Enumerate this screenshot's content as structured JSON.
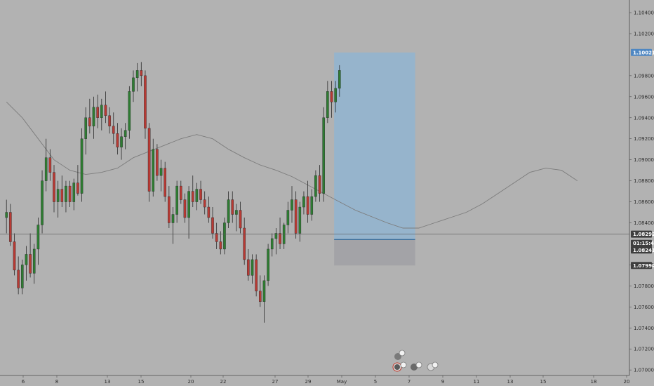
{
  "chart_data": {
    "type": "candlestick",
    "title": "",
    "ylim": [
      1.06983,
      1.10513
    ],
    "y_ticks": [
      "1.10400",
      "1.10200",
      "1.09800",
      "1.09600",
      "1.09400",
      "1.09200",
      "1.09000",
      "1.08800",
      "1.08600",
      "1.08400",
      "1.08000",
      "1.07800",
      "1.07600",
      "1.07400",
      "1.07200",
      "1.07000"
    ],
    "x_ticks": [
      "6",
      "8",
      "13",
      "15",
      "20",
      "22",
      "27",
      "29",
      "May",
      "5",
      "7",
      "9",
      "11",
      "13",
      "15",
      "18",
      "20"
    ],
    "price_tags": [
      {
        "label": "1.10021",
        "value": 1.10021,
        "role": "target"
      },
      {
        "label": "1.08292",
        "value": 1.08292,
        "role": "current"
      },
      {
        "label": "01:15:47",
        "value": 1.08205,
        "role": "countdown"
      },
      {
        "label": "1.08241",
        "value": 1.08141,
        "role": "entry"
      },
      {
        "label": "1.07994",
        "value": 1.07994,
        "role": "stop"
      }
    ],
    "position_tool": {
      "entry": 1.08241,
      "target": 1.10021,
      "stop": 1.07994,
      "span_bars": [
        83,
        103
      ]
    },
    "moving_average": [
      [
        0,
        1.0955
      ],
      [
        4,
        1.094
      ],
      [
        8,
        1.092
      ],
      [
        12,
        1.09
      ],
      [
        16,
        1.089
      ],
      [
        20,
        1.0886
      ],
      [
        24,
        1.0888
      ],
      [
        28,
        1.0892
      ],
      [
        32,
        1.0902
      ],
      [
        36,
        1.0908
      ],
      [
        40,
        1.0914
      ],
      [
        44,
        1.092
      ],
      [
        48,
        1.0924
      ],
      [
        52,
        1.092
      ],
      [
        56,
        1.091
      ],
      [
        60,
        1.0902
      ],
      [
        64,
        1.0895
      ],
      [
        68,
        1.089
      ],
      [
        72,
        1.0884
      ],
      [
        76,
        1.0876
      ],
      [
        80,
        1.0868
      ],
      [
        84,
        1.086
      ],
      [
        88,
        1.0852
      ],
      [
        92,
        1.0846
      ],
      [
        96,
        1.084
      ],
      [
        100,
        1.0835
      ],
      [
        104,
        1.0835
      ],
      [
        108,
        1.084
      ],
      [
        112,
        1.0845
      ],
      [
        116,
        1.085
      ],
      [
        120,
        1.0858
      ],
      [
        124,
        1.0868
      ],
      [
        128,
        1.0878
      ],
      [
        132,
        1.0888
      ],
      [
        136,
        1.0892
      ],
      [
        140,
        1.089
      ],
      [
        144,
        1.088
      ]
    ],
    "candles": [
      {
        "o": 1.0845,
        "h": 1.0862,
        "l": 1.083,
        "c": 1.085
      },
      {
        "o": 1.085,
        "h": 1.0858,
        "l": 1.0818,
        "c": 1.0822
      },
      {
        "o": 1.0822,
        "h": 1.083,
        "l": 1.079,
        "c": 1.0795
      },
      {
        "o": 1.0795,
        "h": 1.0808,
        "l": 1.0772,
        "c": 1.0778
      },
      {
        "o": 1.0778,
        "h": 1.0805,
        "l": 1.0772,
        "c": 1.08
      },
      {
        "o": 1.08,
        "h": 1.0818,
        "l": 1.0785,
        "c": 1.081
      },
      {
        "o": 1.081,
        "h": 1.083,
        "l": 1.0788,
        "c": 1.0792
      },
      {
        "o": 1.0792,
        "h": 1.082,
        "l": 1.0782,
        "c": 1.0815
      },
      {
        "o": 1.0815,
        "h": 1.0845,
        "l": 1.08,
        "c": 1.0838
      },
      {
        "o": 1.0838,
        "h": 1.089,
        "l": 1.083,
        "c": 1.088
      },
      {
        "o": 1.088,
        "h": 1.092,
        "l": 1.087,
        "c": 1.0902
      },
      {
        "o": 1.0902,
        "h": 1.091,
        "l": 1.088,
        "c": 1.0888
      },
      {
        "o": 1.0888,
        "h": 1.0895,
        "l": 1.085,
        "c": 1.086
      },
      {
        "o": 1.086,
        "h": 1.088,
        "l": 1.0845,
        "c": 1.0872
      },
      {
        "o": 1.0872,
        "h": 1.0885,
        "l": 1.0855,
        "c": 1.086
      },
      {
        "o": 1.086,
        "h": 1.088,
        "l": 1.085,
        "c": 1.0875
      },
      {
        "o": 1.0875,
        "h": 1.088,
        "l": 1.0855,
        "c": 1.086
      },
      {
        "o": 1.086,
        "h": 1.0882,
        "l": 1.0852,
        "c": 1.0878
      },
      {
        "o": 1.0878,
        "h": 1.0895,
        "l": 1.0866,
        "c": 1.0868
      },
      {
        "o": 1.0868,
        "h": 1.093,
        "l": 1.086,
        "c": 1.092
      },
      {
        "o": 1.092,
        "h": 1.095,
        "l": 1.0905,
        "c": 1.094
      },
      {
        "o": 1.094,
        "h": 1.0958,
        "l": 1.0925,
        "c": 1.0932
      },
      {
        "o": 1.0932,
        "h": 1.096,
        "l": 1.092,
        "c": 1.095
      },
      {
        "o": 1.095,
        "h": 1.0962,
        "l": 1.093,
        "c": 1.094
      },
      {
        "o": 1.094,
        "h": 1.0958,
        "l": 1.0928,
        "c": 1.0952
      },
      {
        "o": 1.0952,
        "h": 1.0965,
        "l": 1.0935,
        "c": 1.0942
      },
      {
        "o": 1.0942,
        "h": 1.095,
        "l": 1.0925,
        "c": 1.0932
      },
      {
        "o": 1.0932,
        "h": 1.0945,
        "l": 1.0915,
        "c": 1.0925
      },
      {
        "o": 1.0925,
        "h": 1.0935,
        "l": 1.0905,
        "c": 1.0912
      },
      {
        "o": 1.0912,
        "h": 1.093,
        "l": 1.09,
        "c": 1.0922
      },
      {
        "o": 1.0922,
        "h": 1.0935,
        "l": 1.091,
        "c": 1.0928
      },
      {
        "o": 1.0928,
        "h": 1.097,
        "l": 1.092,
        "c": 1.0965
      },
      {
        "o": 1.0965,
        "h": 1.0985,
        "l": 1.0955,
        "c": 1.0978
      },
      {
        "o": 1.0978,
        "h": 1.0992,
        "l": 1.0965,
        "c": 1.0985
      },
      {
        "o": 1.0985,
        "h": 1.0993,
        "l": 1.097,
        "c": 1.098
      },
      {
        "o": 1.098,
        "h": 1.0985,
        "l": 1.092,
        "c": 1.093
      },
      {
        "o": 1.093,
        "h": 1.0935,
        "l": 1.086,
        "c": 1.087
      },
      {
        "o": 1.087,
        "h": 1.092,
        "l": 1.0865,
        "c": 1.091
      },
      {
        "o": 1.091,
        "h": 1.0915,
        "l": 1.088,
        "c": 1.0885
      },
      {
        "o": 1.0885,
        "h": 1.09,
        "l": 1.087,
        "c": 1.0892
      },
      {
        "o": 1.0892,
        "h": 1.0898,
        "l": 1.086,
        "c": 1.0865
      },
      {
        "o": 1.0865,
        "h": 1.0875,
        "l": 1.0835,
        "c": 1.084
      },
      {
        "o": 1.084,
        "h": 1.0855,
        "l": 1.082,
        "c": 1.0848
      },
      {
        "o": 1.0848,
        "h": 1.088,
        "l": 1.084,
        "c": 1.0875
      },
      {
        "o": 1.0875,
        "h": 1.088,
        "l": 1.0858,
        "c": 1.0862
      },
      {
        "o": 1.0862,
        "h": 1.0868,
        "l": 1.084,
        "c": 1.0845
      },
      {
        "o": 1.0845,
        "h": 1.0875,
        "l": 1.0825,
        "c": 1.087
      },
      {
        "o": 1.087,
        "h": 1.0885,
        "l": 1.0855,
        "c": 1.086
      },
      {
        "o": 1.086,
        "h": 1.0878,
        "l": 1.0852,
        "c": 1.0872
      },
      {
        "o": 1.0872,
        "h": 1.088,
        "l": 1.0858,
        "c": 1.0862
      },
      {
        "o": 1.0862,
        "h": 1.087,
        "l": 1.0848,
        "c": 1.0855
      },
      {
        "o": 1.0855,
        "h": 1.0865,
        "l": 1.084,
        "c": 1.0845
      },
      {
        "o": 1.0845,
        "h": 1.0855,
        "l": 1.0825,
        "c": 1.083
      },
      {
        "o": 1.083,
        "h": 1.084,
        "l": 1.0815,
        "c": 1.0822
      },
      {
        "o": 1.0822,
        "h": 1.0832,
        "l": 1.081,
        "c": 1.0815
      },
      {
        "o": 1.0815,
        "h": 1.0845,
        "l": 1.081,
        "c": 1.084
      },
      {
        "o": 1.084,
        "h": 1.087,
        "l": 1.0835,
        "c": 1.0862
      },
      {
        "o": 1.0862,
        "h": 1.087,
        "l": 1.084,
        "c": 1.0848
      },
      {
        "o": 1.0848,
        "h": 1.0858,
        "l": 1.0832,
        "c": 1.0852
      },
      {
        "o": 1.0852,
        "h": 1.086,
        "l": 1.083,
        "c": 1.0835
      },
      {
        "o": 1.0835,
        "h": 1.0845,
        "l": 1.08,
        "c": 1.0805
      },
      {
        "o": 1.0805,
        "h": 1.0815,
        "l": 1.0785,
        "c": 1.079
      },
      {
        "o": 1.079,
        "h": 1.081,
        "l": 1.0782,
        "c": 1.0805
      },
      {
        "o": 1.0805,
        "h": 1.081,
        "l": 1.077,
        "c": 1.0775
      },
      {
        "o": 1.0775,
        "h": 1.079,
        "l": 1.076,
        "c": 1.0765
      },
      {
        "o": 1.0765,
        "h": 1.079,
        "l": 1.0745,
        "c": 1.0785
      },
      {
        "o": 1.0785,
        "h": 1.082,
        "l": 1.078,
        "c": 1.0815
      },
      {
        "o": 1.0815,
        "h": 1.083,
        "l": 1.0808,
        "c": 1.0825
      },
      {
        "o": 1.0825,
        "h": 1.0835,
        "l": 1.081,
        "c": 1.083
      },
      {
        "o": 1.083,
        "h": 1.0845,
        "l": 1.0815,
        "c": 1.082
      },
      {
        "o": 1.082,
        "h": 1.084,
        "l": 1.0815,
        "c": 1.0838
      },
      {
        "o": 1.0838,
        "h": 1.086,
        "l": 1.083,
        "c": 1.0852
      },
      {
        "o": 1.0852,
        "h": 1.0875,
        "l": 1.084,
        "c": 1.0862
      },
      {
        "o": 1.0862,
        "h": 1.087,
        "l": 1.0825,
        "c": 1.083
      },
      {
        "o": 1.083,
        "h": 1.086,
        "l": 1.0822,
        "c": 1.0855
      },
      {
        "o": 1.0855,
        "h": 1.087,
        "l": 1.0848,
        "c": 1.0865
      },
      {
        "o": 1.0865,
        "h": 1.088,
        "l": 1.084,
        "c": 1.0848
      },
      {
        "o": 1.0848,
        "h": 1.0872,
        "l": 1.0842,
        "c": 1.0865
      },
      {
        "o": 1.0865,
        "h": 1.089,
        "l": 1.086,
        "c": 1.0885
      },
      {
        "o": 1.0885,
        "h": 1.0895,
        "l": 1.086,
        "c": 1.0868
      },
      {
        "o": 1.0868,
        "h": 1.095,
        "l": 1.086,
        "c": 1.094
      },
      {
        "o": 1.094,
        "h": 1.0975,
        "l": 1.0935,
        "c": 1.0965
      },
      {
        "o": 1.0965,
        "h": 1.0975,
        "l": 1.094,
        "c": 1.0955
      },
      {
        "o": 1.0955,
        "h": 1.0975,
        "l": 1.0945,
        "c": 1.0968
      },
      {
        "o": 1.0968,
        "h": 1.099,
        "l": 1.096,
        "c": 1.0985
      }
    ]
  }
}
